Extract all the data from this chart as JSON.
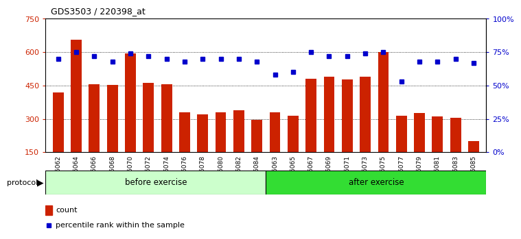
{
  "title": "GDS3503 / 220398_at",
  "categories": [
    "GSM306062",
    "GSM306064",
    "GSM306066",
    "GSM306068",
    "GSM306070",
    "GSM306072",
    "GSM306074",
    "GSM306076",
    "GSM306078",
    "GSM306080",
    "GSM306082",
    "GSM306084",
    "GSM306063",
    "GSM306065",
    "GSM306067",
    "GSM306069",
    "GSM306071",
    "GSM306073",
    "GSM306075",
    "GSM306077",
    "GSM306079",
    "GSM306081",
    "GSM306083",
    "GSM306085"
  ],
  "bar_values": [
    420,
    655,
    455,
    453,
    595,
    462,
    455,
    330,
    320,
    330,
    340,
    295,
    330,
    315,
    480,
    490,
    478,
    490,
    600,
    315,
    325,
    310,
    305,
    200
  ],
  "percentile_values": [
    70,
    75,
    72,
    68,
    74,
    72,
    70,
    68,
    70,
    70,
    70,
    68,
    58,
    60,
    75,
    72,
    72,
    74,
    75,
    53,
    68,
    68,
    70,
    67
  ],
  "bar_color": "#cc2200",
  "dot_color": "#0000cc",
  "before_count": 12,
  "after_count": 12,
  "before_label": "before exercise",
  "after_label": "after exercise",
  "protocol_label": "protocol",
  "legend_bar_label": "count",
  "legend_dot_label": "percentile rank within the sample",
  "ylim_left": [
    150,
    750
  ],
  "ylim_right": [
    0,
    100
  ],
  "yticks_left": [
    150,
    300,
    450,
    600,
    750
  ],
  "yticks_right": [
    0,
    25,
    50,
    75,
    100
  ],
  "grid_color": "#000000",
  "before_bg": "#ccffcc",
  "after_bg": "#33dd33",
  "plot_bg": "#ffffff"
}
